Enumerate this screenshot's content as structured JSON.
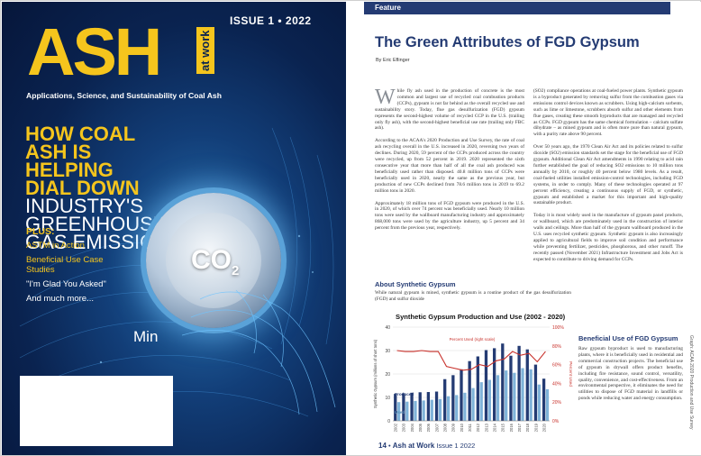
{
  "cover": {
    "issue": "ISSUE 1 • 2022",
    "logo": "ASH",
    "logo_sub": "at work",
    "tagline": "Applications, Science, and Sustainability of Coal Ash",
    "headline_yellow": [
      "HOW COAL",
      "ASH IS",
      "HELPING",
      "DIAL DOWN"
    ],
    "headline_white": [
      "INDUSTRY'S",
      "GREENHOUSE",
      "GAS EMISSIONS"
    ],
    "plus_head": "PLUS:",
    "plus_items": [
      "ASTM in Action",
      "Beneficial Use Case Studies",
      "\"I'm Glad You Asked\"",
      "And much more..."
    ],
    "dial_label": "CO",
    "dial_subscript": "2",
    "min_label": "Min",
    "colors": {
      "accent": "#f5c51d",
      "navy": "#0a2350"
    }
  },
  "article": {
    "section": "Feature",
    "title": "The Green Attributes of FGD Gypsum",
    "byline": "By Eric Eflinger",
    "col1": [
      "hile fly ash used in the production of concrete is the most common and largest use of recycled coal combustion products (CCPs), gypsum is not far behind as the overall recycled use and sustainability story. Today, flue gas desulfurization (FGD) gypsum represents the second-highest volume of recycled CCP in the U.S. (trailing only fly ash), with the second-highest beneficial use rate (trailing only FBC ash).",
      "According to the ACAA's 2020 Production and Use Survey, the rate of coal ash recycling overall in the U.S. increased in 2020, reversing two years of declines. During 2020, 59 percent of the CCPs produced across the country were recycled, up from 52 percent in 2019. 2020 represented the sixth consecutive year that more than half of all the coal ash produced was beneficially used rather than disposed. 40.8 million tons of CCPs were beneficially used in 2020, nearly the same as the previous year, but production of new CCPs declined from 78.6 million tons in 2019 to 69.2 million tons in 2020.",
      "Approximately 18 million tons of FGD gypsum were produced in the U.S. in 2020, of which over 74 percent was beneficially used. Nearly 10 million tons were used by the wallboard manufacturing industry and approximately 868,000 tons were used by the agriculture industry, up 5 percent and 34 percent from the previous year, respectively."
    ],
    "drop_cap": "W",
    "sub1": "About Synthetic Gypsum",
    "col1b": "While natural gypsum is mined, synthetic gypsum is a routine product of the gas desulfurization (FGD) and sulfur dioxide",
    "col2": [
      "(SO2) compliance operations at coal-fueled power plants. Synthetic gypsum is a byproduct generated by removing sulfur from the combustion gases via emissions control devices known as scrubbers. Using high-calcium sorbents, such as lime or limestone, scrubbers absorb sulfur and other elements from flue gases, creating these smooth byproducts that are managed and recycled as CCPs. FGD gypsum has the same chemical formulation – calcium sulfate dihydrate – as mined gypsum and is often more pure than natural gypsum, with a purity rate above 90 percent.",
      "Over 50 years ago, the 1970 Clean Air Act and its policies related to sulfur dioxide (SO2) emission standards set the stage for the beneficial use of FGD gypsum. Additional Clean Air Act amendments in 1990 relating to acid rain further established the goal of reducing SO2 emissions to 10 million tons annually by 2010, or roughly 40 percent below 1980 levels. As a result, coal-fueled utilities installed emission-control technologies, including FGD systems, in order to comply. Many of these technologies operated at 97 percent efficiency, creating a continuous supply of FGD, or synthetic, gypsum and established a market for this important and high-quality sustainable product.",
      "Today it is most widely used in the manufacture of gypsum panel products, or wallboard, which are predominately used in the construction of interior walls and ceilings. More than half of the gypsum wallboard produced in the U.S. uses recycled synthetic gypsum. Synthetic gypsum is also increasingly applied to agricultural fields to improve soil condition and performance while preventing fertilizer, pesticides, phosphorous, and other runoff. The recently passed (November 2021) Infrastructure Investment and Jobs Act is expected to contribute to driving demand for CCPs."
    ],
    "sub2": "Beneficial Use of FGD Gypsum",
    "col3": "Raw gypsum byproduct is used to manufacturing plants, where it is beneficially used in residential and commercial construction projects. The beneficial use of gypsum in drywall offers product benefits, including fire resistance, sound control, versatility, quality, convenience, and cost-effectiveness. From an environmental perspective, it eliminates the need for utilities to dispose of FGD material in landfills or ponds while reducing water and energy consumption.",
    "footer_page": "14",
    "footer_bullet": "•",
    "footer_mag": "Ash at Work",
    "footer_issue": "Issue 1 2022",
    "credit": "Graph: ACAA 2020 Production and Use Survey"
  },
  "chart_data": {
    "type": "bar",
    "title": "Synthetic Gypsum Production and Use (2002 - 2020)",
    "ylabel": "Synthetic Gypsum (millions of short tons)",
    "y2label": "Percent Used",
    "categories": [
      "2002",
      "2003",
      "2004",
      "2005",
      "2006",
      "2007",
      "2008",
      "2009",
      "2010",
      "2011",
      "2012",
      "2013",
      "2014",
      "2015",
      "2016",
      "2017",
      "2018",
      "2019",
      "2020"
    ],
    "ylim": [
      0,
      40
    ],
    "y2lim": [
      0,
      100
    ],
    "yticks": [
      "0",
      "10",
      "20",
      "30",
      "40"
    ],
    "y2ticks": [
      "0%",
      "20%",
      "40%",
      "60%",
      "80%",
      "100%"
    ],
    "series": [
      {
        "name": "Produced",
        "color": "#243b73",
        "values": [
          11.5,
          11.8,
          12.0,
          12.2,
          12.3,
          12.5,
          17.8,
          19.5,
          22.0,
          25.5,
          27.5,
          30.2,
          31.0,
          33.0,
          27.8,
          32.0,
          30.5,
          24.0,
          18.0
        ]
      },
      {
        "name": "Used",
        "color": "#7fb3d9",
        "values": [
          8.0,
          8.2,
          8.5,
          8.7,
          9.0,
          9.3,
          10.5,
          11.0,
          12.0,
          14.0,
          16.5,
          17.5,
          19.5,
          21.5,
          20.5,
          22.5,
          22.0,
          15.5,
          13.5
        ]
      },
      {
        "name": "Percent Used (right scale)",
        "color": "#c8302a",
        "type": "line",
        "values": [
          75,
          74,
          74,
          75,
          74,
          74,
          58,
          56,
          54,
          55,
          60,
          58,
          64,
          66,
          74,
          70,
          72,
          63,
          74
        ]
      }
    ]
  }
}
